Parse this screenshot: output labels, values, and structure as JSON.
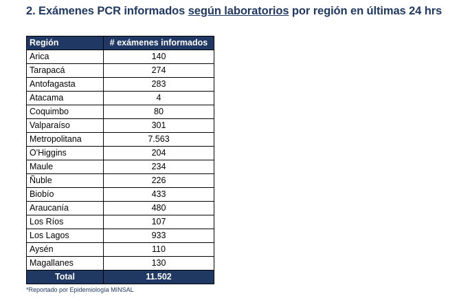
{
  "title": {
    "prefix": "2. Exámenes PCR informados ",
    "underlined": "según laboratorios",
    "suffix": " por región en últimas 24 hrs"
  },
  "table": {
    "headers": {
      "region": "Región",
      "count": "# exámenes informados"
    },
    "rows": [
      {
        "region": "Arica",
        "count": "140"
      },
      {
        "region": "Tarapacá",
        "count": "274"
      },
      {
        "region": "Antofagasta",
        "count": "283"
      },
      {
        "region": "Atacama",
        "count": "4"
      },
      {
        "region": "Coquimbo",
        "count": "80"
      },
      {
        "region": "Valparaíso",
        "count": "301"
      },
      {
        "region": "Metropolitana",
        "count": "7.563"
      },
      {
        "region": "O'Higgins",
        "count": "204"
      },
      {
        "region": "Maule",
        "count": "234"
      },
      {
        "region": "Ñuble",
        "count": "226"
      },
      {
        "region": "Biobío",
        "count": "433"
      },
      {
        "region": "Araucanía",
        "count": "480"
      },
      {
        "region": "Los Ríos",
        "count": "107"
      },
      {
        "region": "Los Lagos",
        "count": "933"
      },
      {
        "region": "Aysén",
        "count": "110"
      },
      {
        "region": "Magallanes",
        "count": "130"
      }
    ],
    "total": {
      "label": "Total",
      "value": "11.502"
    }
  },
  "footnote": "*Reportado por Epidemiología MINSAL",
  "colors": {
    "header_bg": "#1f3864",
    "title_text": "#1f3864"
  }
}
